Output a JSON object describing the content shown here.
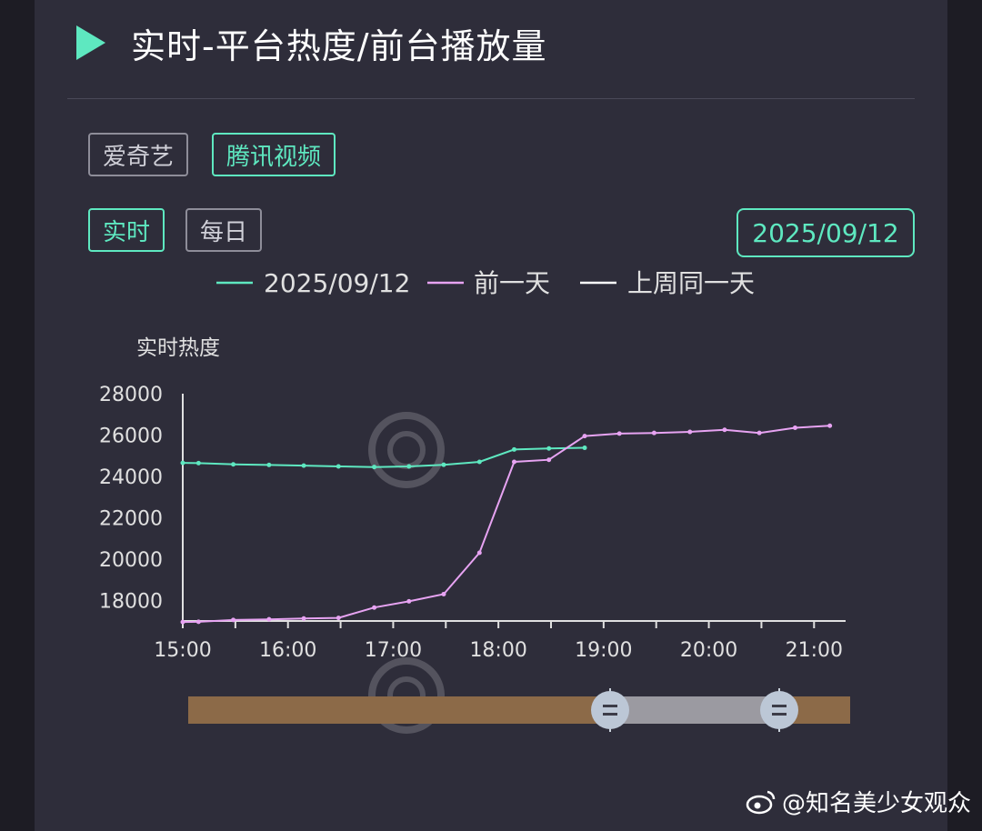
{
  "title": "实时-平台热度/前台播放量",
  "platform_tabs": [
    {
      "label": "爱奇艺",
      "active": false
    },
    {
      "label": "腾讯视频",
      "active": true
    }
  ],
  "period_tabs": [
    {
      "label": "实时",
      "active": true
    },
    {
      "label": "每日",
      "active": false
    }
  ],
  "date_picker": "2025/09/12",
  "watermark": "@知名美少女观众",
  "colors": {
    "accent": "#5ee8c0",
    "series_prev": "#e7a3f2",
    "series_lastweek": "#ffffff",
    "axis": "#e0e0e0"
  },
  "chart_data": {
    "type": "line",
    "ylabel": "实时热度",
    "ylim": [
      17000,
      28000
    ],
    "yticks": [
      18000,
      20000,
      22000,
      24000,
      26000,
      28000
    ],
    "xlim": [
      15.0,
      21.3
    ],
    "xticks": [
      {
        "v": 15,
        "label": "15:00"
      },
      {
        "v": 16,
        "label": "16:00"
      },
      {
        "v": 17,
        "label": "17:00"
      },
      {
        "v": 18,
        "label": "18:00"
      },
      {
        "v": 19,
        "label": "19:00"
      },
      {
        "v": 20,
        "label": "20:00"
      },
      {
        "v": 21,
        "label": "21:00"
      }
    ],
    "legend_position": "top-center",
    "series": [
      {
        "name": "2025/09/12",
        "color": "#5ee8c0",
        "points": [
          [
            15.0,
            24650
          ],
          [
            15.15,
            24640
          ],
          [
            15.48,
            24580
          ],
          [
            15.82,
            24550
          ],
          [
            16.15,
            24520
          ],
          [
            16.48,
            24480
          ],
          [
            16.82,
            24450
          ],
          [
            17.15,
            24480
          ],
          [
            17.48,
            24560
          ],
          [
            17.82,
            24700
          ],
          [
            18.15,
            25300
          ],
          [
            18.48,
            25350
          ],
          [
            18.82,
            25380
          ]
        ]
      },
      {
        "name": "前一天",
        "color": "#e7a3f2",
        "points": [
          [
            15.0,
            16950
          ],
          [
            15.15,
            16960
          ],
          [
            15.48,
            17050
          ],
          [
            15.82,
            17080
          ],
          [
            16.15,
            17120
          ],
          [
            16.48,
            17150
          ],
          [
            16.82,
            17650
          ],
          [
            17.15,
            17950
          ],
          [
            17.48,
            18300
          ],
          [
            17.82,
            20300
          ],
          [
            18.15,
            24700
          ],
          [
            18.48,
            24800
          ],
          [
            18.82,
            25950
          ],
          [
            19.15,
            26070
          ],
          [
            19.48,
            26100
          ],
          [
            19.82,
            26150
          ],
          [
            20.15,
            26250
          ],
          [
            20.48,
            26100
          ],
          [
            20.82,
            26350
          ],
          [
            21.15,
            26450
          ]
        ]
      },
      {
        "name": "上周同一天",
        "color": "#ffffff",
        "points": []
      }
    ]
  }
}
